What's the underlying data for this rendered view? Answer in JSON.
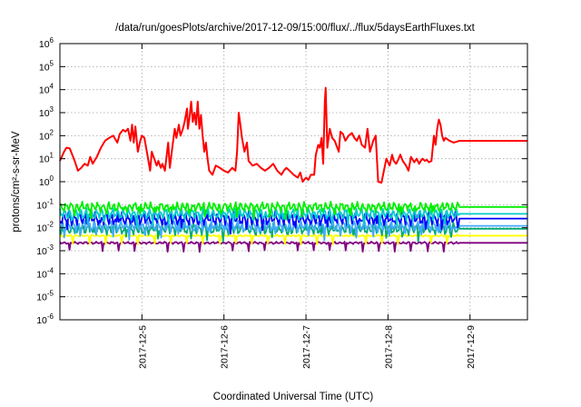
{
  "chart_data": {
    "type": "line",
    "title": "/data/run/goesPlots/archive/2017-12-09/15:00/flux/../flux/5daysEarthFluxes.txt",
    "xlabel": "Coordinated Universal Time (UTC)",
    "ylabel": "protons/cm²-s-sr-MeV",
    "y_scale": "log",
    "ylim": [
      1e-06,
      1000000.0
    ],
    "y_tick_exponents": [
      -6,
      -5,
      -4,
      -3,
      -2,
      -1,
      0,
      1,
      2,
      3,
      4,
      5,
      6
    ],
    "x_unit": "days since 2017-12-04T00:00Z",
    "xlim": [
      4.0,
      9.7
    ],
    "x_ticks": [
      {
        "x": 5.0,
        "label": "2017-12-5"
      },
      {
        "x": 6.0,
        "label": "2017-12-6"
      },
      {
        "x": 7.0,
        "label": "2017-12-7"
      },
      {
        "x": 8.0,
        "label": "2017-12-8"
      },
      {
        "x": 9.0,
        "label": "2017-12-9"
      }
    ],
    "grid": true,
    "data_end_x": 8.87,
    "series": [
      {
        "color": "#ff0000",
        "points": [
          [
            4.0,
            8
          ],
          [
            4.05,
            20
          ],
          [
            4.08,
            30
          ],
          [
            4.12,
            28
          ],
          [
            4.15,
            15
          ],
          [
            4.18,
            8
          ],
          [
            4.22,
            3
          ],
          [
            4.26,
            4
          ],
          [
            4.3,
            6
          ],
          [
            4.34,
            5
          ],
          [
            4.37,
            12
          ],
          [
            4.4,
            6
          ],
          [
            4.45,
            12
          ],
          [
            4.5,
            30
          ],
          [
            4.55,
            60
          ],
          [
            4.6,
            80
          ],
          [
            4.65,
            100
          ],
          [
            4.7,
            50
          ],
          [
            4.73,
            120
          ],
          [
            4.77,
            180
          ],
          [
            4.8,
            150
          ],
          [
            4.83,
            200
          ],
          [
            4.86,
            60
          ],
          [
            4.88,
            300
          ],
          [
            4.9,
            50
          ],
          [
            4.92,
            250
          ],
          [
            4.95,
            20
          ],
          [
            4.98,
            60
          ],
          [
            5.0,
            100
          ],
          [
            5.03,
            80
          ],
          [
            5.06,
            20
          ],
          [
            5.1,
            3
          ],
          [
            5.12,
            20
          ],
          [
            5.15,
            10
          ],
          [
            5.18,
            5
          ],
          [
            5.2,
            8
          ],
          [
            5.23,
            4
          ],
          [
            5.25,
            6
          ],
          [
            5.28,
            3
          ],
          [
            5.32,
            50
          ],
          [
            5.34,
            4
          ],
          [
            5.37,
            30
          ],
          [
            5.4,
            200
          ],
          [
            5.42,
            80
          ],
          [
            5.45,
            300
          ],
          [
            5.47,
            100
          ],
          [
            5.5,
            200
          ],
          [
            5.52,
            400
          ],
          [
            5.55,
            1500
          ],
          [
            5.56,
            200
          ],
          [
            5.58,
            600
          ],
          [
            5.6,
            3000
          ],
          [
            5.62,
            400
          ],
          [
            5.64,
            1000
          ],
          [
            5.66,
            300
          ],
          [
            5.68,
            3000
          ],
          [
            5.7,
            200
          ],
          [
            5.72,
            800
          ],
          [
            5.74,
            100
          ],
          [
            5.76,
            20
          ],
          [
            5.78,
            50
          ],
          [
            5.8,
            10
          ],
          [
            5.82,
            3
          ],
          [
            5.86,
            2
          ],
          [
            5.9,
            5
          ],
          [
            5.95,
            4
          ],
          [
            6.0,
            3
          ],
          [
            6.05,
            2.5
          ],
          [
            6.1,
            4
          ],
          [
            6.14,
            3
          ],
          [
            6.16,
            20
          ],
          [
            6.18,
            1000
          ],
          [
            6.2,
            300
          ],
          [
            6.22,
            80
          ],
          [
            6.25,
            20
          ],
          [
            6.28,
            50
          ],
          [
            6.3,
            8
          ],
          [
            6.35,
            5
          ],
          [
            6.4,
            6
          ],
          [
            6.45,
            4
          ],
          [
            6.5,
            3
          ],
          [
            6.55,
            4
          ],
          [
            6.6,
            6
          ],
          [
            6.65,
            3
          ],
          [
            6.7,
            2
          ],
          [
            6.73,
            3
          ],
          [
            6.76,
            4
          ],
          [
            6.8,
            3
          ],
          [
            6.85,
            2
          ],
          [
            6.9,
            1.5
          ],
          [
            6.93,
            2.5
          ],
          [
            6.96,
            1
          ],
          [
            7.0,
            1.5
          ],
          [
            7.03,
            1.2
          ],
          [
            7.06,
            2
          ],
          [
            7.1,
            2
          ],
          [
            7.12,
            15
          ],
          [
            7.15,
            40
          ],
          [
            7.17,
            30
          ],
          [
            7.19,
            80
          ],
          [
            7.21,
            6
          ],
          [
            7.23,
            3000
          ],
          [
            7.24,
            12000
          ],
          [
            7.26,
            30
          ],
          [
            7.29,
            200
          ],
          [
            7.32,
            80
          ],
          [
            7.35,
            60
          ],
          [
            7.4,
            20
          ],
          [
            7.42,
            150
          ],
          [
            7.45,
            120
          ],
          [
            7.48,
            60
          ],
          [
            7.52,
            100
          ],
          [
            7.56,
            130
          ],
          [
            7.59,
            80
          ],
          [
            7.62,
            60
          ],
          [
            7.65,
            100
          ],
          [
            7.68,
            40
          ],
          [
            7.72,
            30
          ],
          [
            7.75,
            200
          ],
          [
            7.78,
            20
          ],
          [
            7.82,
            60
          ],
          [
            7.85,
            100
          ],
          [
            7.88,
            1
          ],
          [
            7.92,
            0.9
          ],
          [
            7.95,
            3
          ],
          [
            7.98,
            10
          ],
          [
            8.02,
            5
          ],
          [
            8.05,
            15
          ],
          [
            8.07,
            8
          ],
          [
            8.1,
            6
          ],
          [
            8.13,
            10
          ],
          [
            8.15,
            15
          ],
          [
            8.18,
            8
          ],
          [
            8.22,
            5
          ],
          [
            8.25,
            3
          ],
          [
            8.28,
            12
          ],
          [
            8.32,
            7
          ],
          [
            8.35,
            10
          ],
          [
            8.38,
            6
          ],
          [
            8.4,
            8
          ],
          [
            8.42,
            10
          ],
          [
            8.45,
            8
          ],
          [
            8.47,
            9
          ],
          [
            8.5,
            7
          ],
          [
            8.53,
            8
          ],
          [
            8.56,
            100
          ],
          [
            8.58,
            40
          ],
          [
            8.6,
            200
          ],
          [
            8.62,
            500
          ],
          [
            8.64,
            300
          ],
          [
            8.66,
            100
          ],
          [
            8.68,
            60
          ],
          [
            8.7,
            80
          ],
          [
            8.75,
            60
          ],
          [
            8.8,
            50
          ],
          [
            8.84,
            55
          ],
          [
            8.87,
            60
          ],
          [
            9.7,
            60
          ]
        ]
      },
      {
        "color": "#00ee00",
        "base": 0.08,
        "amp": 0.25,
        "phase": 1.0
      },
      {
        "color": "#00cccc",
        "base": 0.04,
        "amp": 0.3,
        "phase": 2.3
      },
      {
        "color": "#0000ff",
        "base": 0.025,
        "amp": 0.35,
        "phase": 3.7
      },
      {
        "color": "#44aaff",
        "base": 0.012,
        "amp": 0.3,
        "phase": 5.1
      },
      {
        "color": "#00aa77",
        "base": 0.009,
        "amp": 0.3,
        "phase": 6.4
      },
      {
        "color": "#ffff00",
        "base": 0.0045,
        "amp": 0.05,
        "phase": 7.9
      },
      {
        "color": "#800080",
        "base": 0.0022,
        "amp": 0.06,
        "phase": 9.2
      }
    ]
  }
}
